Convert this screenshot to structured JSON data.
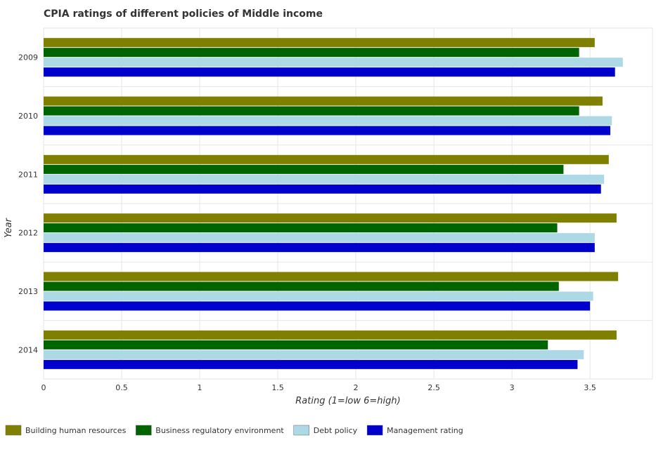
{
  "chart_data": {
    "type": "bar",
    "orientation": "horizontal",
    "title": "CPIA ratings of different policies of Middle income",
    "xlabel": "Rating (1=low 6=high)",
    "ylabel": "Year",
    "categories": [
      "2009",
      "2010",
      "2011",
      "2012",
      "2013",
      "2014"
    ],
    "xlim": [
      0,
      3.9
    ],
    "xticks": [
      0,
      0.5,
      1,
      1.5,
      2,
      2.5,
      3,
      3.5
    ],
    "xtick_labels": [
      "0",
      "0.5",
      "1",
      "1.5",
      "2",
      "2.5",
      "3",
      "3.5"
    ],
    "grid": true,
    "legend_position": "bottom-left",
    "series": [
      {
        "name": "Building human resources",
        "color": "#808000",
        "values": [
          3.53,
          3.58,
          3.62,
          3.67,
          3.68,
          3.67
        ]
      },
      {
        "name": "Business regulatory environment",
        "color": "#006400",
        "values": [
          3.43,
          3.43,
          3.33,
          3.29,
          3.3,
          3.23
        ]
      },
      {
        "name": "Debt policy",
        "color": "#add8e6",
        "values": [
          3.71,
          3.64,
          3.59,
          3.53,
          3.52,
          3.46
        ]
      },
      {
        "name": "Management rating",
        "color": "#0000cd",
        "values": [
          3.66,
          3.63,
          3.57,
          3.53,
          3.5,
          3.42
        ]
      }
    ]
  }
}
